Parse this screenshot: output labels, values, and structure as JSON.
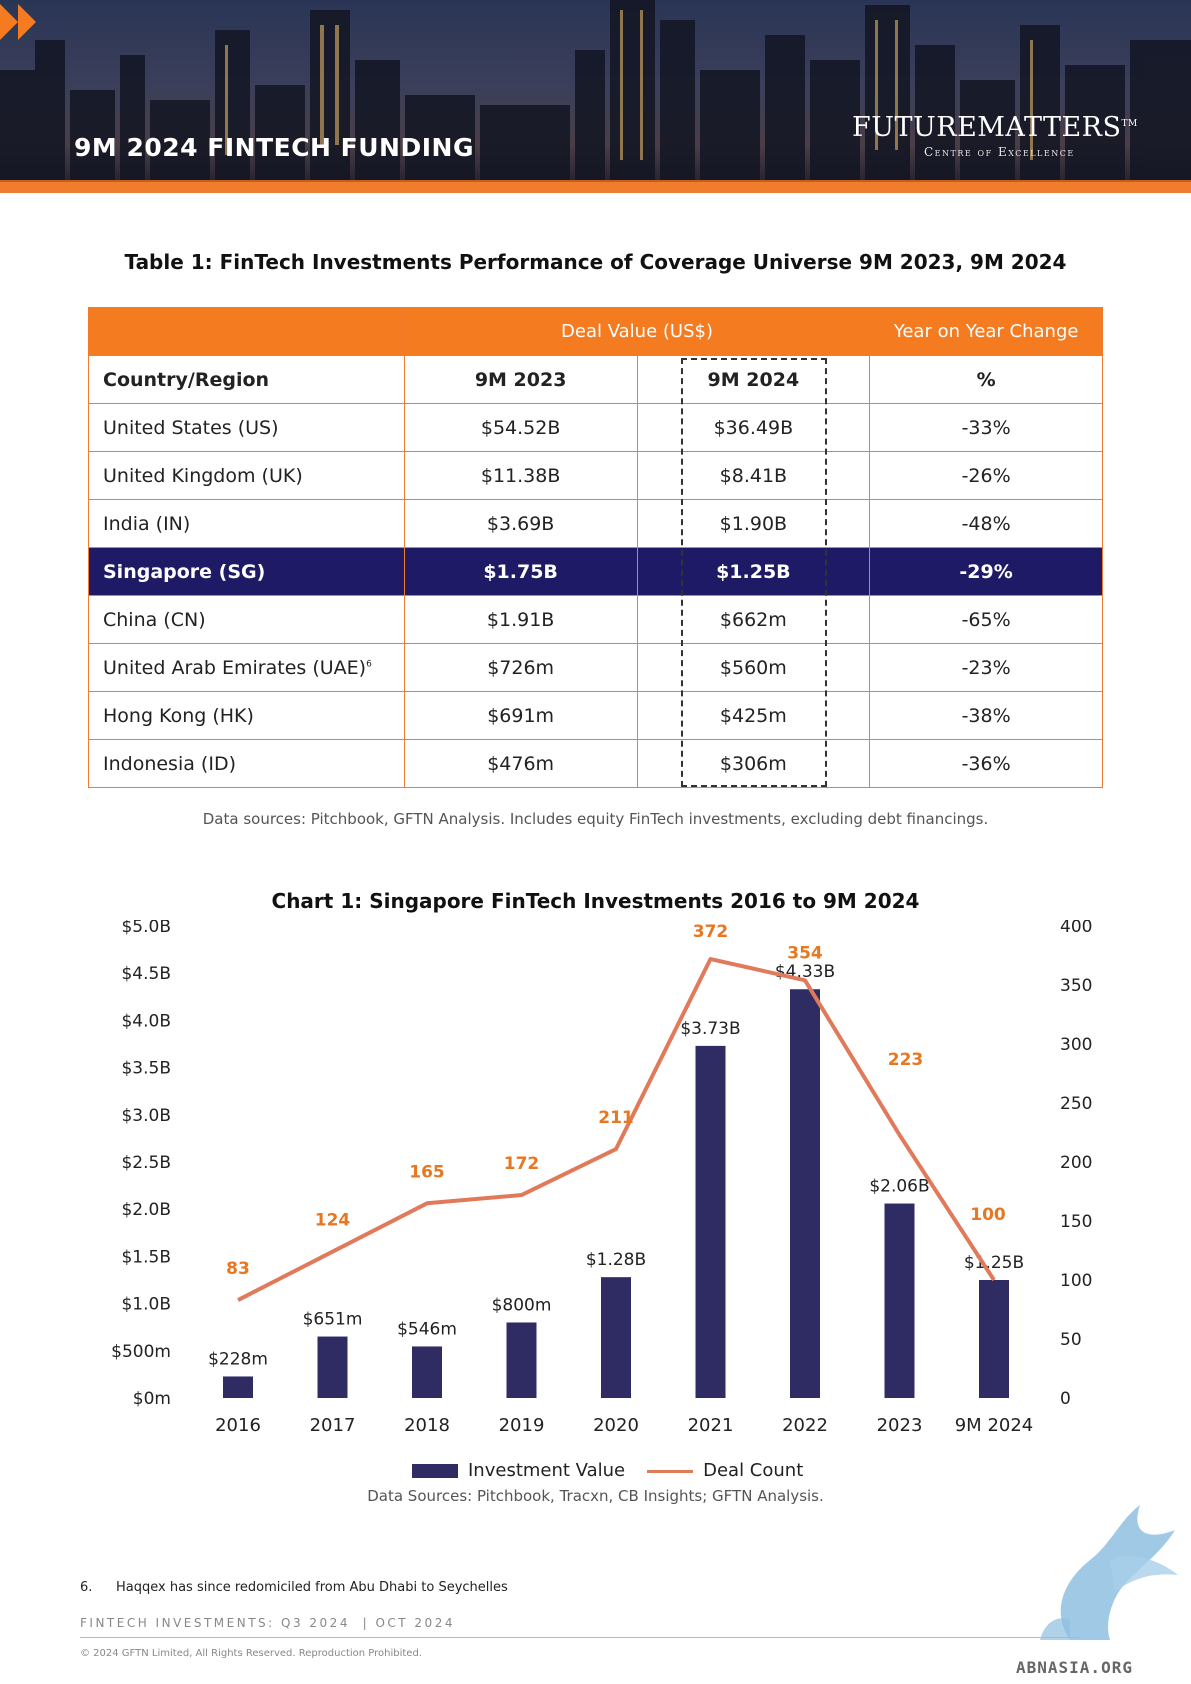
{
  "header": {
    "title": "9M 2024 FINTECH FUNDING",
    "brand": "FUTUREMATTERS",
    "brand_tm": "TM",
    "brand_sub": "Centre of Excellence"
  },
  "table": {
    "title": "Table 1: FinTech Investments Performance of Coverage Universe 9M 2023, 9M 2024",
    "group_headers": {
      "deal_value": "Deal Value (US$)",
      "yoy": "Year on Year Change"
    },
    "columns": [
      "Country/Region",
      "9M 2023",
      "9M 2024",
      "%"
    ],
    "rows": [
      {
        "region": "United States (US)",
        "v2023": "$54.52B",
        "v2024": "$36.49B",
        "change": "-33%"
      },
      {
        "region": "United Kingdom (UK)",
        "v2023": "$11.38B",
        "v2024": "$8.41B",
        "change": "-26%"
      },
      {
        "region": "India (IN)",
        "v2023": "$3.69B",
        "v2024": "$1.90B",
        "change": "-48%"
      },
      {
        "region": "Singapore (SG)",
        "v2023": "$1.75B",
        "v2024": "$1.25B",
        "change": "-29%"
      },
      {
        "region": "China (CN)",
        "v2023": "$1.91B",
        "v2024": "$662m",
        "change": "-65%"
      },
      {
        "region": "United Arab Emirates (UAE)",
        "sup": "6",
        "v2023": "$726m",
        "v2024": "$560m",
        "change": "-23%"
      },
      {
        "region": "Hong Kong (HK)",
        "v2023": "$691m",
        "v2024": "$425m",
        "change": "-38%"
      },
      {
        "region": "Indonesia (ID)",
        "v2023": "$476m",
        "v2024": "$306m",
        "change": "-36%"
      }
    ],
    "source": "Data sources: Pitchbook, GFTN Analysis. Includes equity FinTech investments, excluding debt financings."
  },
  "chart_data": {
    "type": "bar",
    "title": "Chart 1: Singapore FinTech Investments 2016 to 9M 2024",
    "categories": [
      "2016",
      "2017",
      "2018",
      "2019",
      "2020",
      "2021",
      "2022",
      "2023",
      "9M 2024"
    ],
    "series": [
      {
        "name": "Investment Value",
        "type": "bar",
        "axis": "left",
        "values": [
          0.228,
          0.651,
          0.546,
          0.8,
          1.28,
          3.73,
          4.33,
          2.06,
          1.25
        ],
        "labels": [
          "$228m",
          "$651m",
          "$546m",
          "$800m",
          "$1.28B",
          "$3.73B",
          "$4.33B",
          "$2.06B",
          "$1.25B"
        ],
        "color": "#2f2b63"
      },
      {
        "name": "Deal Count",
        "type": "line",
        "axis": "right",
        "values": [
          83,
          124,
          165,
          172,
          211,
          372,
          354,
          223,
          100
        ],
        "color": "#e07a5a",
        "label_color": "#e87722"
      }
    ],
    "y_left": {
      "range": [
        0,
        5.0
      ],
      "ticks": [
        "$0m",
        "$500m",
        "$1.0B",
        "$1.5B",
        "$2.0B",
        "$2.5B",
        "$3.0B",
        "$3.5B",
        "$4.0B",
        "$4.5B",
        "$5.0B"
      ]
    },
    "y_right": {
      "range": [
        0,
        400
      ],
      "ticks": [
        "0",
        "50",
        "100",
        "150",
        "200",
        "250",
        "300",
        "350",
        "400"
      ]
    },
    "legend": {
      "bar": "Investment Value",
      "line": "Deal Count",
      "position": "bottom"
    },
    "grid": false,
    "source": "Data Sources: Pitchbook, Tracxn, CB Insights; GFTN Analysis."
  },
  "footer": {
    "footnote_num": "6.",
    "footnote_text": "Haqqex has since redomiciled from Abu Dhabi to Seychelles",
    "meta_left": "FINTECH INVESTMENTS: Q3 2024",
    "meta_right": "OCT 2024",
    "copyright": "© 2024 GFTN Limited, All Rights Reserved. Reproduction Prohibited.",
    "watermark": "ABNASIA.ORG"
  }
}
